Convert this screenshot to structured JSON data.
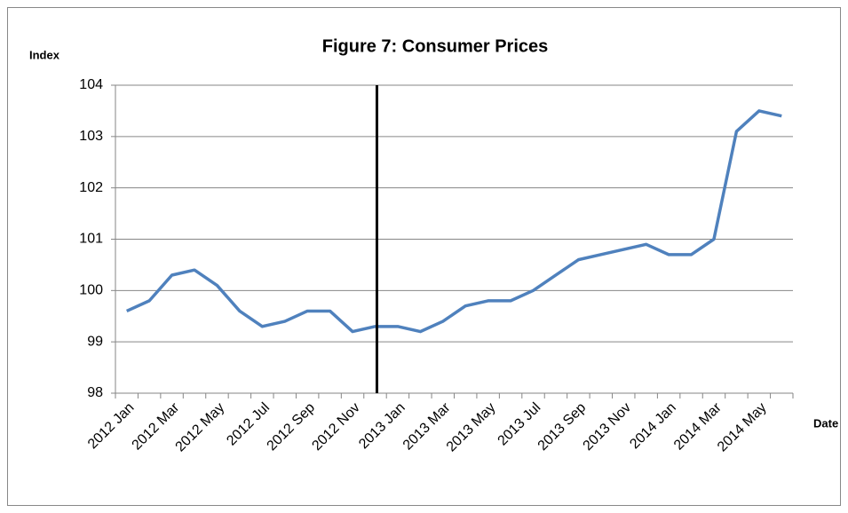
{
  "chart_data": {
    "type": "line",
    "title": "Figure 7: Consumer Prices",
    "y_label": "Index",
    "x_label": "Date",
    "categories": [
      "2012 Jan",
      null,
      "2012 Mar",
      null,
      "2012 May",
      null,
      "2012 Jul",
      null,
      "2012 Sep",
      null,
      "2012 Nov",
      null,
      "2013 Jan",
      null,
      "2013 Mar",
      null,
      "2013 May",
      null,
      "2013 Jul",
      null,
      "2013 Sep",
      null,
      "2013 Nov",
      null,
      "2014 Jan",
      null,
      "2014 Mar",
      null,
      "2014 May",
      null
    ],
    "series": [
      {
        "name": "Consumer Prices",
        "color": "#4f81bd",
        "values": [
          99.6,
          99.8,
          100.3,
          100.4,
          100.1,
          99.6,
          99.3,
          99.4,
          99.6,
          99.6,
          99.2,
          99.3,
          99.3,
          99.2,
          99.4,
          99.7,
          99.8,
          99.8,
          100.0,
          100.3,
          100.6,
          100.7,
          100.8,
          100.9,
          100.7,
          100.7,
          101.0,
          103.1,
          103.5,
          103.4
        ]
      }
    ],
    "ylim": [
      98,
      104
    ],
    "yticks": [
      98,
      99,
      100,
      101,
      102,
      103,
      104
    ],
    "grid": true,
    "reference_line": {
      "category_index": 11,
      "color": "#000000"
    }
  }
}
